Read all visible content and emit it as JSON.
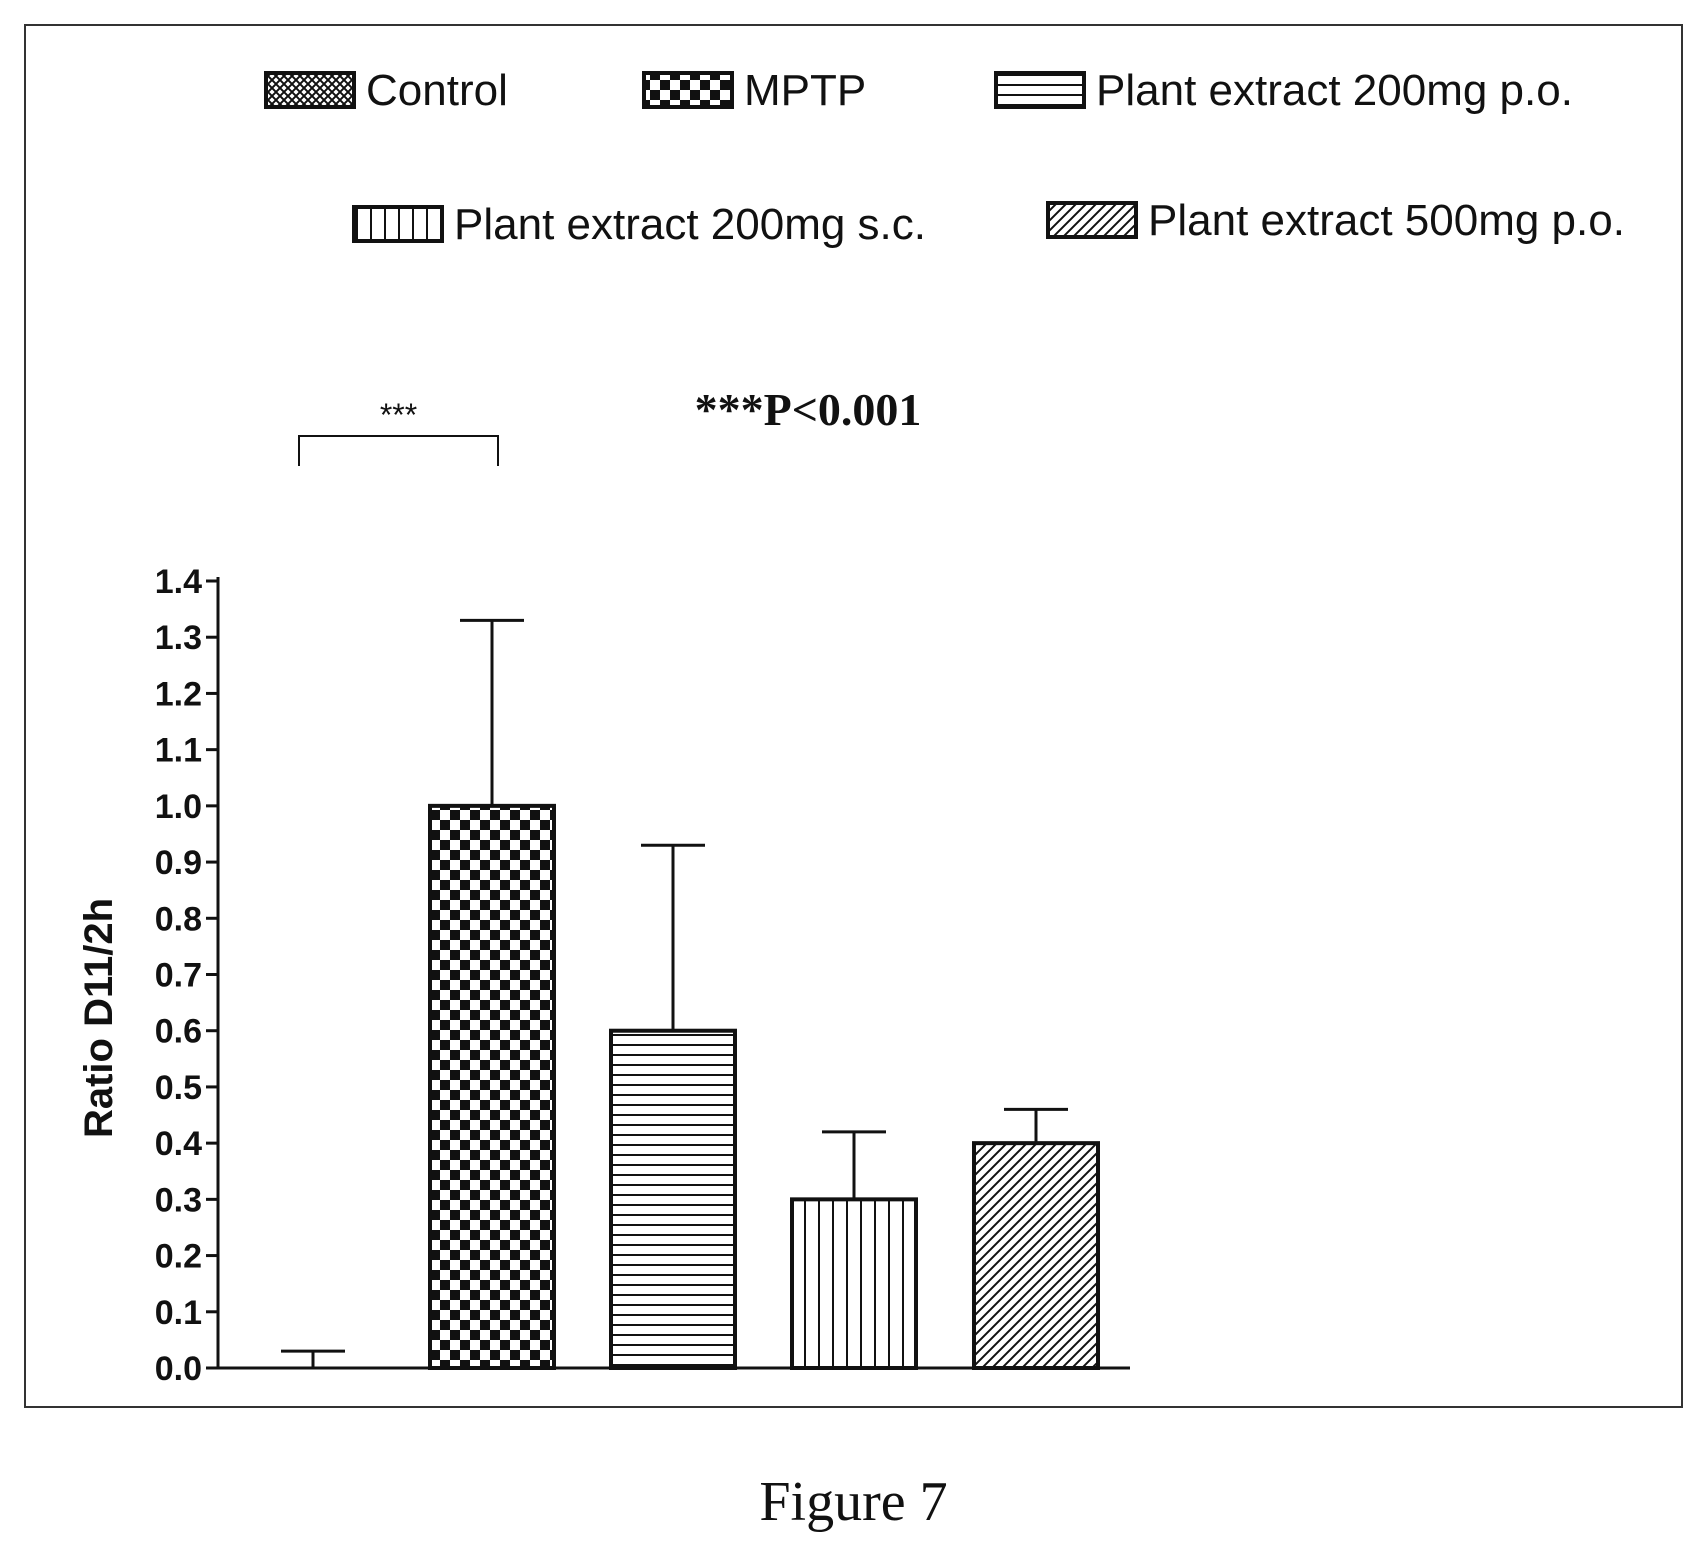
{
  "chart_data": {
    "type": "bar",
    "categories": [
      "Control",
      "MPTP",
      "Plant extract 200mg p.o.",
      "Plant extract 200mg s.c.",
      "Plant extract 500mg p.o."
    ],
    "values": [
      0.0,
      1.0,
      0.6,
      0.3,
      0.4
    ],
    "errors": [
      0.03,
      0.33,
      0.33,
      0.12,
      0.06
    ],
    "patterns": [
      "crosshatch",
      "checker",
      "horizontal-lines",
      "vertical-lines",
      "diagonal-lines"
    ],
    "legend": [
      "Control",
      "MPTP",
      "Plant extract 200mg p.o.",
      "Plant extract 200mg s.c.",
      "Plant extract 500mg p.o."
    ],
    "legend_position": "top",
    "title": "",
    "xlabel": "",
    "ylabel": "Ratio D11/2h",
    "ylim": [
      0.0,
      1.4
    ],
    "yticks": [
      "0.0",
      "0.1",
      "0.2",
      "0.3",
      "0.4",
      "0.5",
      "0.6",
      "0.7",
      "0.8",
      "0.9",
      "1.0",
      "1.1",
      "1.2",
      "1.3",
      "1.4"
    ],
    "grid": false,
    "annotations": {
      "significance_stars": "***",
      "significance_between": [
        "Control",
        "MPTP"
      ],
      "p_value_text": "***P<0.001"
    }
  },
  "caption": "Figure 7",
  "colors": {
    "ink": "#111111",
    "background": "#ffffff"
  }
}
